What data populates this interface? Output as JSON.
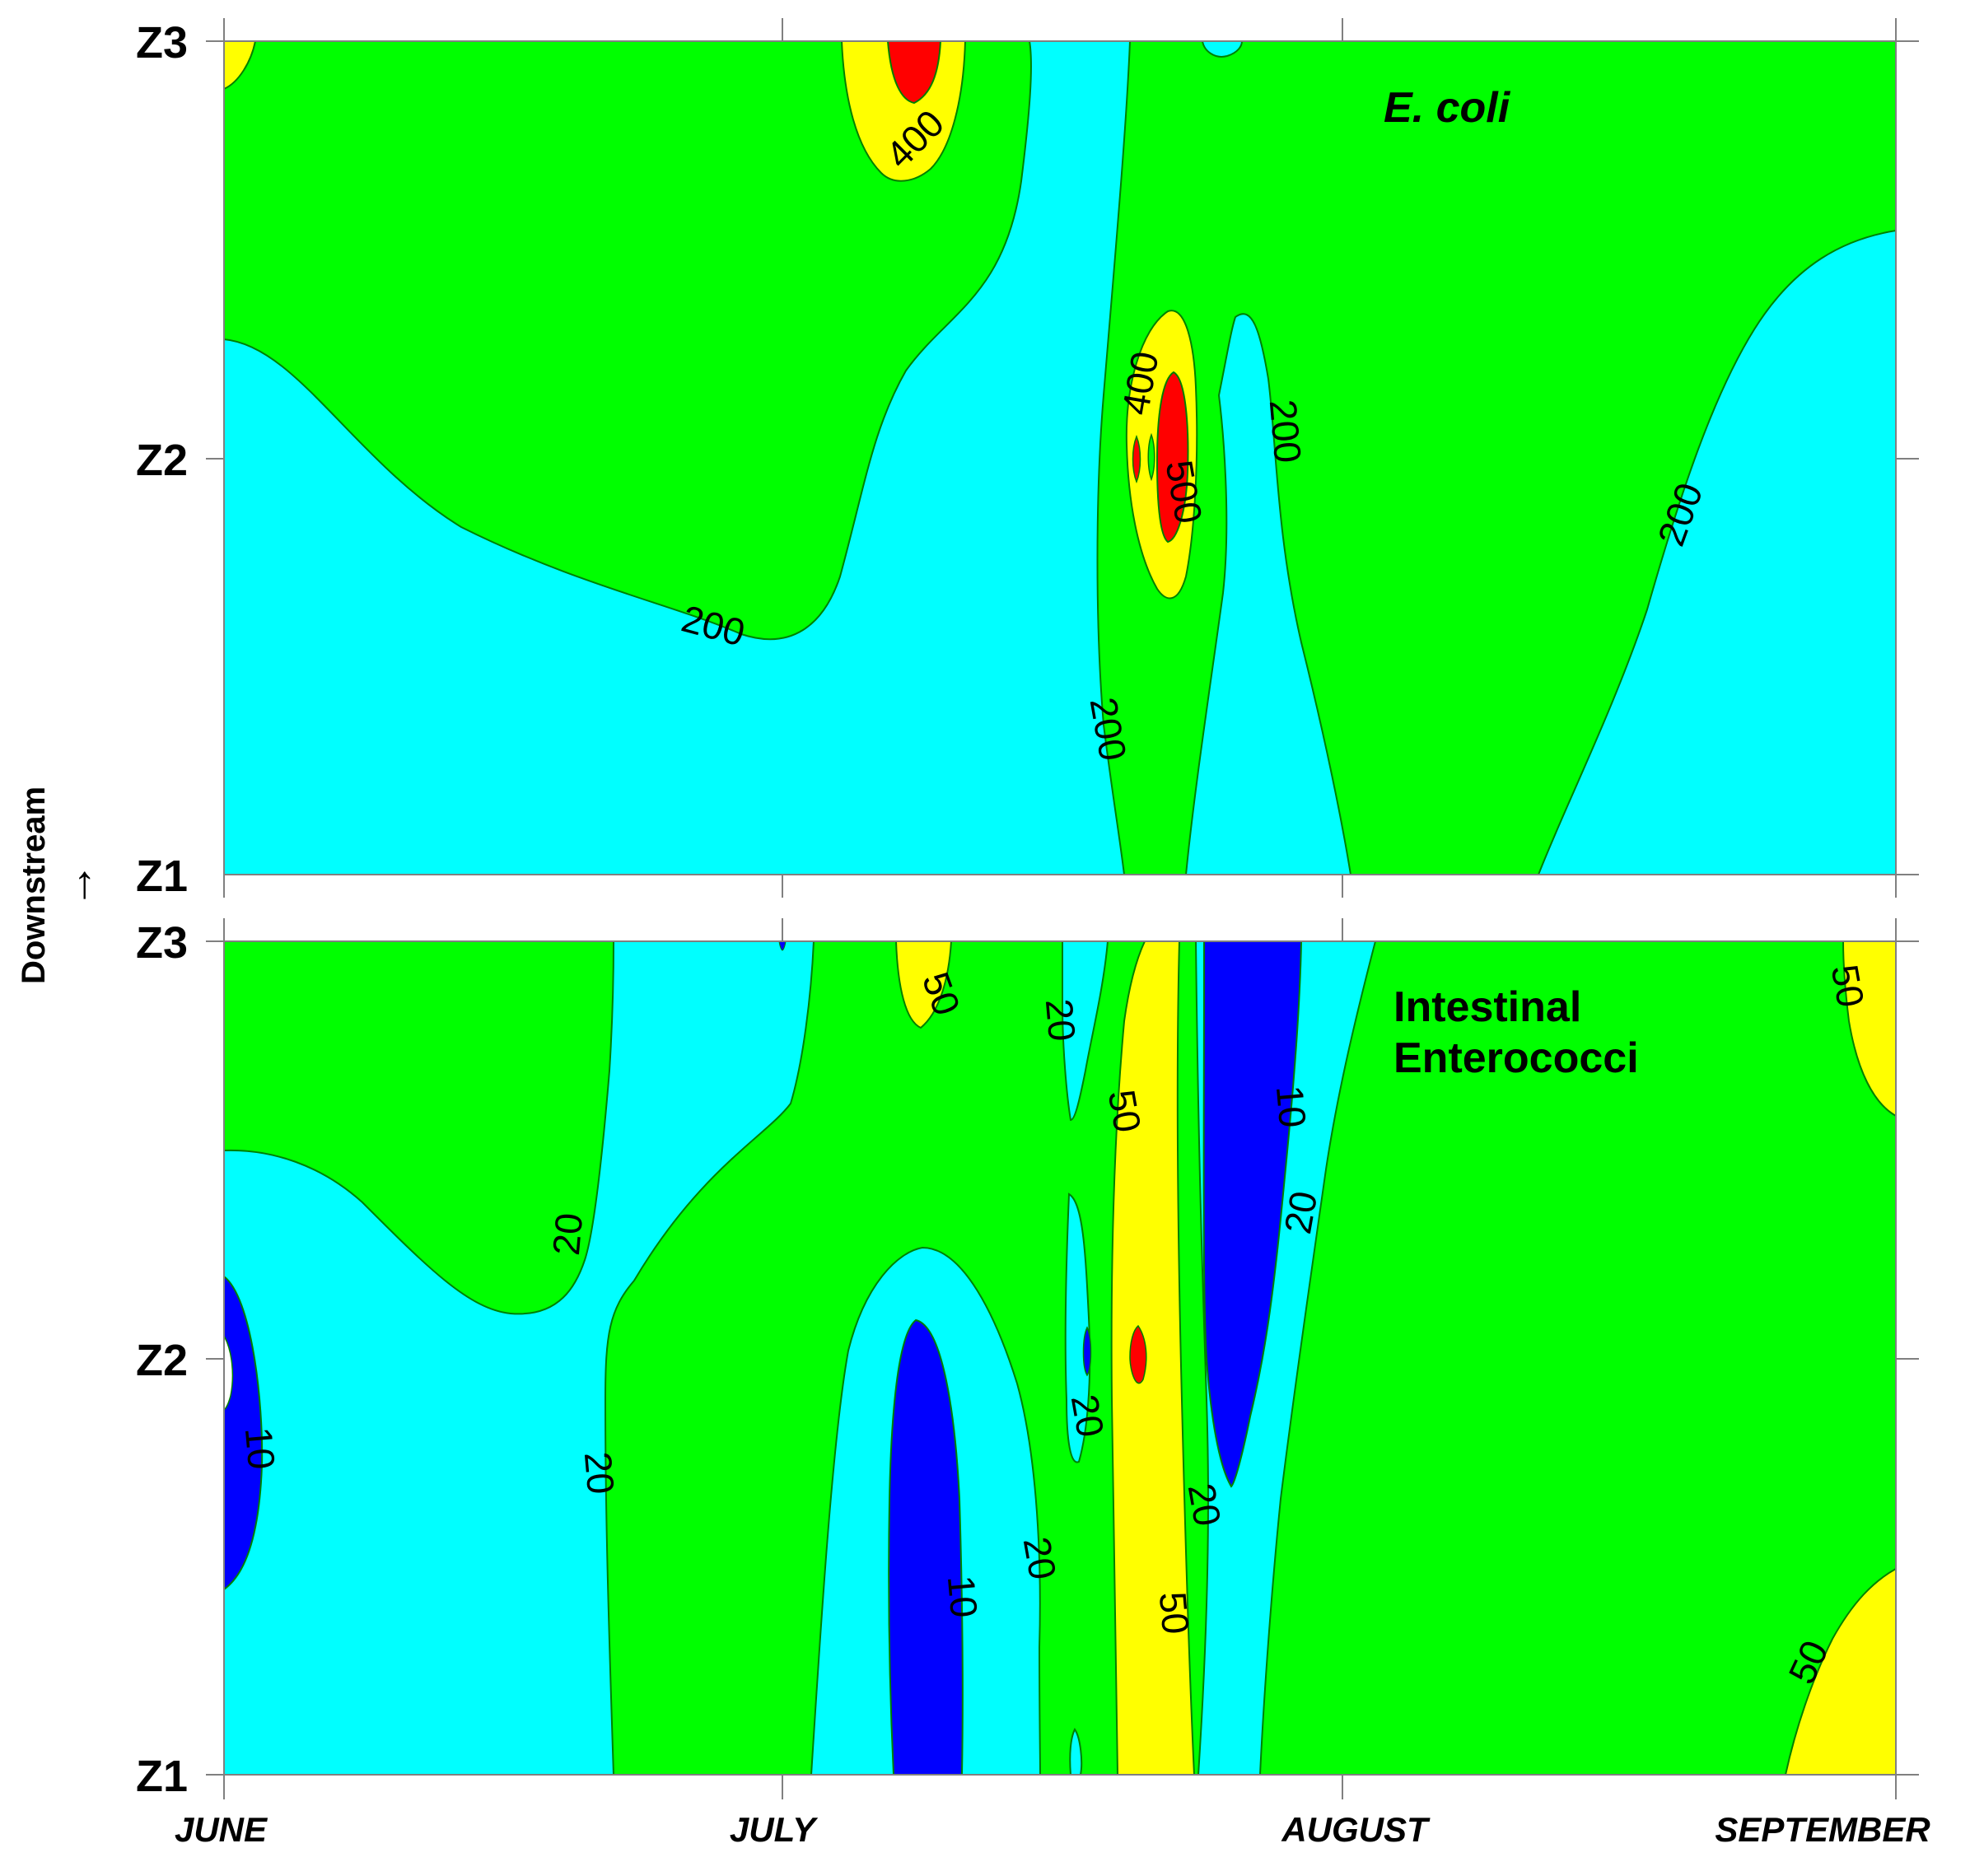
{
  "y_axis": {
    "title": "Downstream",
    "arrow": "→"
  },
  "x_axis": {
    "labels": [
      "JUNE",
      "JULY",
      "AUGUST",
      "SEPTEMBER"
    ]
  },
  "colors": {
    "cyan": "#00FFFF",
    "green": "#00FF00",
    "yellow": "#FFFF00",
    "red": "#FF0000",
    "blue": "#0000FF",
    "contour_line": "#008000"
  },
  "chart_data": [
    {
      "type": "heatmap",
      "title": "E. coli",
      "xlabel": "",
      "ylabel": "Downstream",
      "x_categories": [
        "JUNE",
        "JULY",
        "AUGUST",
        "SEPTEMBER"
      ],
      "y_categories": [
        "Z1",
        "Z2",
        "Z3"
      ],
      "levels": [
        200,
        400,
        500
      ],
      "contour_labels": [
        "400",
        "400",
        "500",
        "200",
        "200",
        "200",
        "200"
      ],
      "grid": false
    },
    {
      "type": "heatmap",
      "title": "Intestinal\nEnterococci",
      "title_lines": [
        "Intestinal",
        "Enterococci"
      ],
      "xlabel": "",
      "ylabel": "Downstream",
      "x_categories": [
        "JUNE",
        "JULY",
        "AUGUST",
        "SEPTEMBER"
      ],
      "y_categories": [
        "Z1",
        "Z2",
        "Z3"
      ],
      "levels": [
        10,
        20,
        50
      ],
      "contour_labels": [
        "50",
        "20",
        "50",
        "10",
        "20",
        "50",
        "20",
        "10",
        "20",
        "20",
        "20",
        "10",
        "20",
        "50",
        "50",
        "20"
      ],
      "grid": false
    }
  ]
}
